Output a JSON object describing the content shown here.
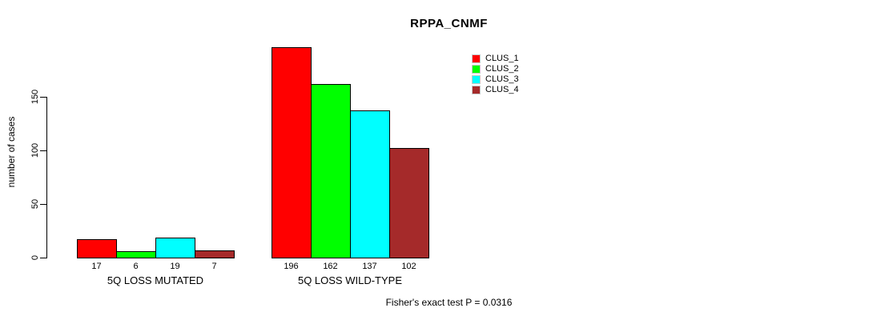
{
  "chart_data": {
    "type": "bar",
    "title": "RPPA_CNMF",
    "ylabel": "number of cases",
    "xlabel": "",
    "categories": [
      "5Q LOSS MUTATED",
      "5Q LOSS WILD-TYPE"
    ],
    "series": [
      {
        "name": "CLUS_1",
        "color": "#ff0000",
        "values": [
          17,
          196
        ]
      },
      {
        "name": "CLUS_2",
        "color": "#00ff00",
        "values": [
          6,
          162
        ]
      },
      {
        "name": "CLUS_3",
        "color": "#00ffff",
        "values": [
          19,
          137
        ]
      },
      {
        "name": "CLUS_4",
        "color": "#a52a2a",
        "values": [
          7,
          102
        ]
      }
    ],
    "yticks": [
      0,
      50,
      100,
      150
    ],
    "ylim": [
      0,
      205
    ],
    "grid": false,
    "bar_value_labels_shown": true,
    "legend_position": "top-right",
    "annotation": "Fisher's exact test P = 0.0316"
  }
}
